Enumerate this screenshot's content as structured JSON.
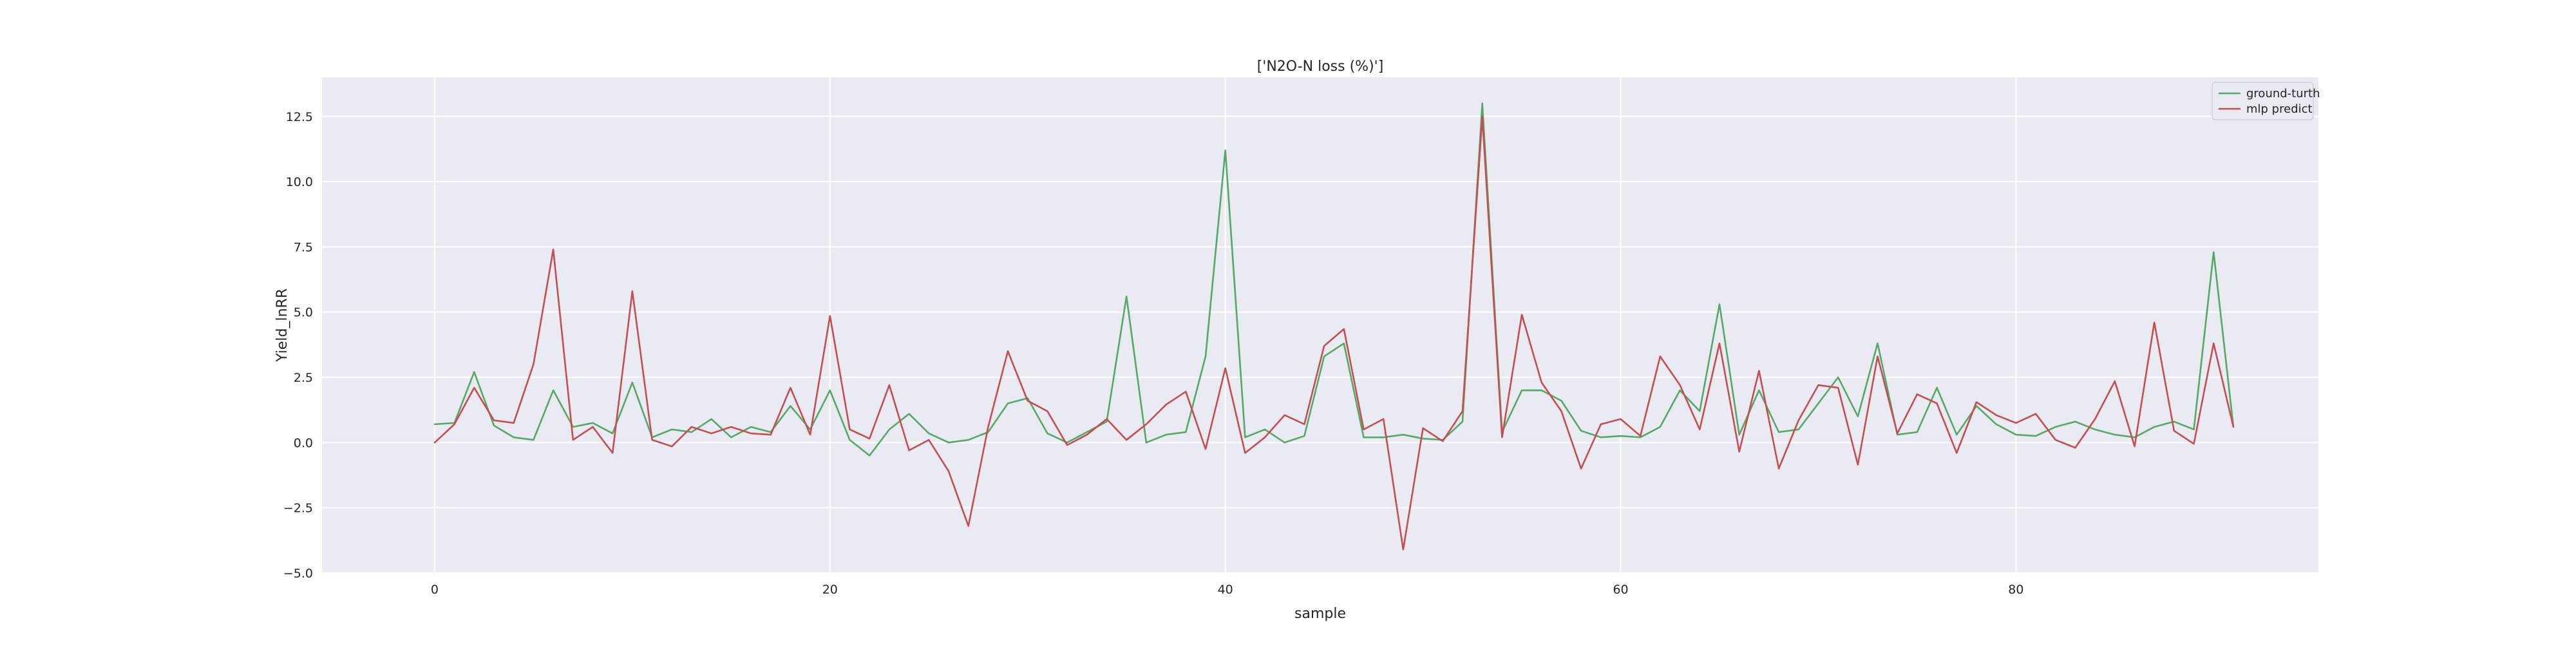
{
  "chart_data": {
    "type": "line",
    "title": "['N2O-N loss (%)']",
    "xlabel": "sample",
    "ylabel": "Yield_lnRR",
    "xlim": [
      -5.7,
      95.3
    ],
    "ylim": [
      -5.0,
      14.0
    ],
    "xticks": [
      0,
      20,
      40,
      60,
      80
    ],
    "yticks": [
      -5.0,
      -2.5,
      0.0,
      2.5,
      5.0,
      7.5,
      10.0,
      12.5
    ],
    "xtick_labels": [
      "0",
      "20",
      "40",
      "60",
      "80"
    ],
    "ytick_labels": [
      "−5.0",
      "−2.5",
      "0.0",
      "2.5",
      "5.0",
      "7.5",
      "10.0",
      "12.5"
    ],
    "grid": true,
    "legend_position": "top-right",
    "x": [
      0,
      1,
      2,
      3,
      4,
      5,
      6,
      7,
      8,
      9,
      10,
      11,
      12,
      13,
      14,
      15,
      16,
      17,
      18,
      19,
      20,
      21,
      22,
      23,
      24,
      25,
      26,
      27,
      28,
      29,
      30,
      31,
      32,
      33,
      34,
      35,
      36,
      37,
      38,
      39,
      40,
      41,
      42,
      43,
      44,
      45,
      46,
      47,
      48,
      49,
      50,
      51,
      52,
      53,
      54,
      55,
      56,
      57,
      58,
      59,
      60,
      61,
      62,
      63,
      64,
      65,
      66,
      67,
      68,
      69,
      70,
      71,
      72,
      73,
      74,
      75,
      76,
      77,
      78,
      79,
      80,
      81,
      82,
      83,
      84,
      85,
      86,
      87,
      88,
      89,
      90,
      91
    ],
    "series": [
      {
        "name": "ground-turth",
        "color": "#55a868",
        "values": [
          0.7,
          0.75,
          2.7,
          0.65,
          0.2,
          0.1,
          2.0,
          0.6,
          0.75,
          0.35,
          2.3,
          0.2,
          0.5,
          0.4,
          0.9,
          0.2,
          0.6,
          0.4,
          1.4,
          0.5,
          2.0,
          0.1,
          -0.5,
          0.5,
          1.1,
          0.35,
          0.0,
          0.1,
          0.4,
          1.5,
          1.7,
          0.35,
          0.0,
          0.4,
          0.8,
          5.6,
          0.0,
          0.3,
          0.4,
          3.3,
          11.2,
          0.2,
          0.5,
          0.0,
          0.25,
          3.3,
          3.8,
          0.2,
          0.2,
          0.3,
          0.15,
          0.1,
          0.8,
          13.0,
          0.4,
          2.0,
          2.0,
          1.6,
          0.45,
          0.2,
          0.25,
          0.2,
          0.6,
          2.0,
          1.2,
          5.3,
          0.3,
          2.0,
          0.4,
          0.5,
          1.5,
          2.5,
          1.0,
          3.8,
          0.3,
          0.4,
          2.1,
          0.3,
          1.4,
          0.7,
          0.3,
          0.25,
          0.6,
          0.8,
          0.5,
          0.3,
          0.2,
          0.6,
          0.8,
          0.5,
          7.3,
          0.6
        ]
      },
      {
        "name": "mlp predict",
        "color": "#c44e52",
        "values": [
          0.0,
          0.7,
          2.1,
          0.85,
          0.75,
          3.0,
          7.4,
          0.1,
          0.6,
          -0.4,
          5.8,
          0.1,
          -0.15,
          0.6,
          0.35,
          0.6,
          0.35,
          0.3,
          2.1,
          0.3,
          4.85,
          0.5,
          0.15,
          2.2,
          -0.3,
          0.1,
          -1.1,
          -3.2,
          0.6,
          3.5,
          1.6,
          1.2,
          -0.1,
          0.3,
          0.9,
          0.1,
          0.7,
          1.45,
          1.95,
          -0.25,
          2.85,
          -0.4,
          0.2,
          1.05,
          0.7,
          3.7,
          4.35,
          0.5,
          0.9,
          -4.1,
          0.55,
          0.05,
          1.2,
          12.5,
          0.2,
          4.9,
          2.3,
          1.2,
          -1.0,
          0.7,
          0.9,
          0.25,
          3.3,
          2.2,
          0.5,
          3.8,
          -0.35,
          2.75,
          -1.0,
          0.85,
          2.2,
          2.1,
          -0.85,
          3.3,
          0.35,
          1.85,
          1.5,
          -0.4,
          1.55,
          1.05,
          0.75,
          1.1,
          0.1,
          -0.2,
          0.9,
          2.35,
          -0.15,
          4.6,
          0.45,
          -0.05,
          3.8,
          0.6
        ]
      }
    ]
  }
}
